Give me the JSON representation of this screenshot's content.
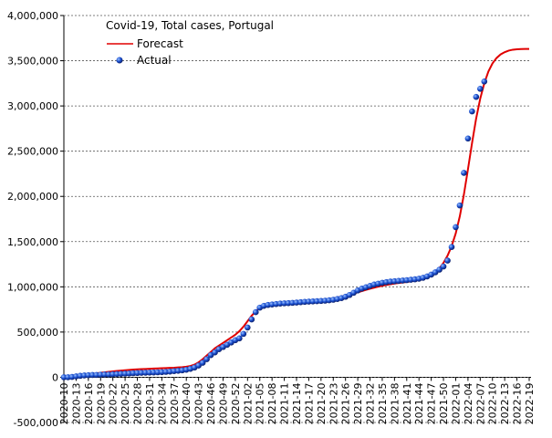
{
  "chart_data": {
    "type": "line",
    "title": "Covid-19, Total cases, Portugal",
    "categories": [
      "2020-10",
      null,
      null,
      "2020-13",
      null,
      null,
      "2020-16",
      null,
      null,
      "2020-19",
      null,
      null,
      "2020-22",
      null,
      null,
      "2020-25",
      null,
      null,
      "2020-28",
      null,
      null,
      "2020-31",
      null,
      null,
      "2020-34",
      null,
      null,
      "2020-37",
      null,
      null,
      "2020-40",
      null,
      null,
      "2020-43",
      null,
      null,
      "2020-46",
      null,
      null,
      "2020-49",
      null,
      null,
      "2020-52",
      null,
      null,
      "2021-02",
      null,
      null,
      "2021-05",
      null,
      null,
      "2021-08",
      null,
      null,
      "2021-11",
      null,
      null,
      "2021-14",
      null,
      null,
      "2021-17",
      null,
      null,
      "2021-20",
      null,
      null,
      "2021-23",
      null,
      null,
      "2021-26",
      null,
      null,
      "2021-29",
      null,
      null,
      "2021-32",
      null,
      null,
      "2021-35",
      null,
      null,
      "2021-38",
      null,
      null,
      "2021-41",
      null,
      null,
      "2021-44",
      null,
      null,
      "2021-47",
      null,
      null,
      "2021-50",
      null,
      null,
      "2022-01",
      null,
      null,
      "2022-04",
      null,
      null,
      "2022-07",
      null,
      null,
      "2022-10",
      null,
      null,
      "2022-13",
      null,
      null,
      "2022-16",
      null,
      null,
      "2022-19"
    ],
    "series": [
      {
        "name": "Forecast",
        "color": "#e00000",
        "marker": "line",
        "values": [
          0,
          3000,
          8000,
          14000,
          20000,
          26000,
          32000,
          38000,
          44000,
          50000,
          55000,
          60000,
          65000,
          70000,
          74000,
          78000,
          82000,
          85000,
          88000,
          90000,
          92000,
          94000,
          96000,
          98000,
          100000,
          102000,
          104000,
          106000,
          109000,
          112000,
          117000,
          125000,
          140000,
          165000,
          200000,
          240000,
          280000,
          320000,
          350000,
          380000,
          410000,
          440000,
          470000,
          510000,
          560000,
          620000,
          680000,
          730000,
          765000,
          785000,
          797000,
          805000,
          811000,
          816000,
          820000,
          823000,
          826000,
          829000,
          832000,
          835000,
          838000,
          842000,
          846000,
          851000,
          857000,
          864000,
          872000,
          881000,
          891000,
          902000,
          914000,
          927000,
          940000,
          953000,
          966000,
          979000,
          991000,
          1002000,
          1012000,
          1021000,
          1029000,
          1036000,
          1042000,
          1048000,
          1054000,
          1060000,
          1067000,
          1076000,
          1088000,
          1105000,
          1128000,
          1160000,
          1205000,
          1265000,
          1345000,
          1450000,
          1590000,
          1780000,
          2020000,
          2300000,
          2590000,
          2860000,
          3080000,
          3250000,
          3380000,
          3470000,
          3530000,
          3570000,
          3595000,
          3612000,
          3622000,
          3627000,
          3629000,
          3630000,
          3630000
        ]
      },
      {
        "name": "Actual",
        "color": "#1a4fd0",
        "marker": "dot",
        "values": [
          100,
          600,
          4000,
          10000,
          16000,
          20000,
          23000,
          25000,
          26000,
          28000,
          30000,
          31000,
          33000,
          35000,
          38000,
          40000,
          42000,
          45000,
          47000,
          49000,
          51000,
          52000,
          53000,
          55000,
          57000,
          60000,
          63000,
          68000,
          72000,
          77000,
          83000,
          93000,
          108000,
          130000,
          160000,
          200000,
          245000,
          275000,
          310000,
          335000,
          360000,
          385000,
          410000,
          430000,
          480000,
          550000,
          640000,
          720000,
          770000,
          790000,
          800000,
          805000,
          810000,
          815000,
          818000,
          820000,
          823000,
          826000,
          830000,
          834000,
          837000,
          839000,
          841000,
          844000,
          847000,
          851000,
          857000,
          865000,
          875000,
          890000,
          910000,
          935000,
          960000,
          980000,
          995000,
          1010000,
          1025000,
          1035000,
          1045000,
          1052000,
          1058000,
          1062000,
          1066000,
          1070000,
          1074000,
          1078000,
          1083000,
          1090000,
          1100000,
          1115000,
          1135000,
          1160000,
          1190000,
          1225000,
          1290000,
          1440000,
          1660000,
          1900000,
          2260000,
          2640000,
          2940000,
          3100000,
          3190000,
          3270000,
          null,
          null,
          null,
          null,
          null,
          null,
          null,
          null,
          null,
          null,
          null
        ]
      }
    ],
    "ylim": [
      -500000,
      4000000
    ],
    "yticks": [
      {
        "value": -500000,
        "label": "-500,000"
      },
      0,
      {
        "value": 500000,
        "label": "500,000"
      },
      {
        "value": 1000000,
        "label": "1,000,000"
      },
      {
        "value": 1500000,
        "label": "1,500,000"
      },
      {
        "value": 2000000,
        "label": "2,000,000"
      },
      {
        "value": 2500000,
        "label": "2,500,000"
      },
      {
        "value": 3000000,
        "label": "3,000,000"
      },
      {
        "value": 3500000,
        "label": "3,500,000"
      },
      {
        "value": 4000000,
        "label": "4,000,000"
      }
    ],
    "grid": true
  }
}
